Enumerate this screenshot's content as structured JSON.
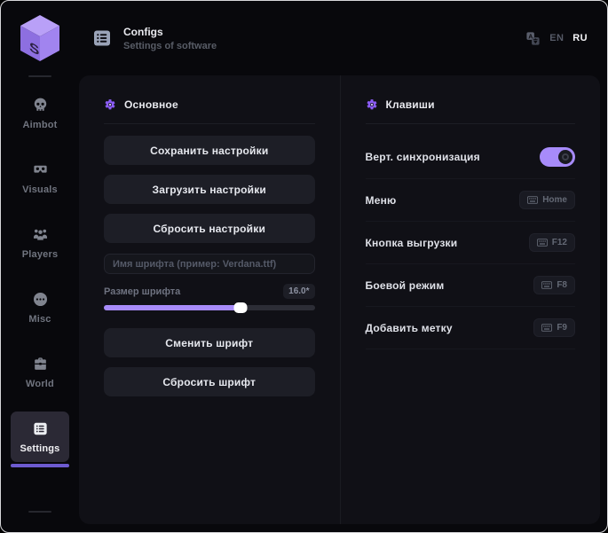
{
  "header": {
    "title": "Configs",
    "subtitle": "Settings of software",
    "languages": [
      {
        "code": "EN",
        "active": false
      },
      {
        "code": "RU",
        "active": true
      }
    ]
  },
  "sidebar": {
    "items": [
      {
        "label": "Aimbot",
        "icon": "skull-icon",
        "active": false
      },
      {
        "label": "Visuals",
        "icon": "vr-goggles-icon",
        "active": false
      },
      {
        "label": "Players",
        "icon": "players-icon",
        "active": false
      },
      {
        "label": "Misc",
        "icon": "ellipsis-circle-icon",
        "active": false
      },
      {
        "label": "World",
        "icon": "briefcase-icon",
        "active": false
      },
      {
        "label": "Settings",
        "icon": "list-icon",
        "active": true
      }
    ]
  },
  "main": {
    "general": {
      "title": "Основное",
      "buttons": [
        "Сохранить настройки",
        "Загрузить настройки",
        "Сбросить настройки"
      ],
      "font_name_placeholder": "Имя шрифта (пример: Verdana.ttf)",
      "font_size_label": "Размер шрифта",
      "font_size_value": "16.0*",
      "slider_percent": 65,
      "font_buttons": [
        "Сменить шрифт",
        "Сбросить шрифт"
      ]
    },
    "keys": {
      "title": "Клавиши",
      "rows": [
        {
          "label": "Верт. синхронизация",
          "control": "toggle",
          "on": true
        },
        {
          "label": "Меню",
          "control": "keybind",
          "key": "Home"
        },
        {
          "label": "Кнопка выгрузки",
          "control": "keybind",
          "key": "F12"
        },
        {
          "label": "Боевой режим",
          "control": "keybind",
          "key": "F8"
        },
        {
          "label": "Добавить метку",
          "control": "keybind",
          "key": "F9"
        }
      ]
    }
  },
  "colors": {
    "accent": "#a78bfa",
    "accent_deep": "#8b5cf6",
    "active_underline": "#6d5bd0",
    "card_bg": "#101016",
    "window_bg": "#08080c"
  }
}
